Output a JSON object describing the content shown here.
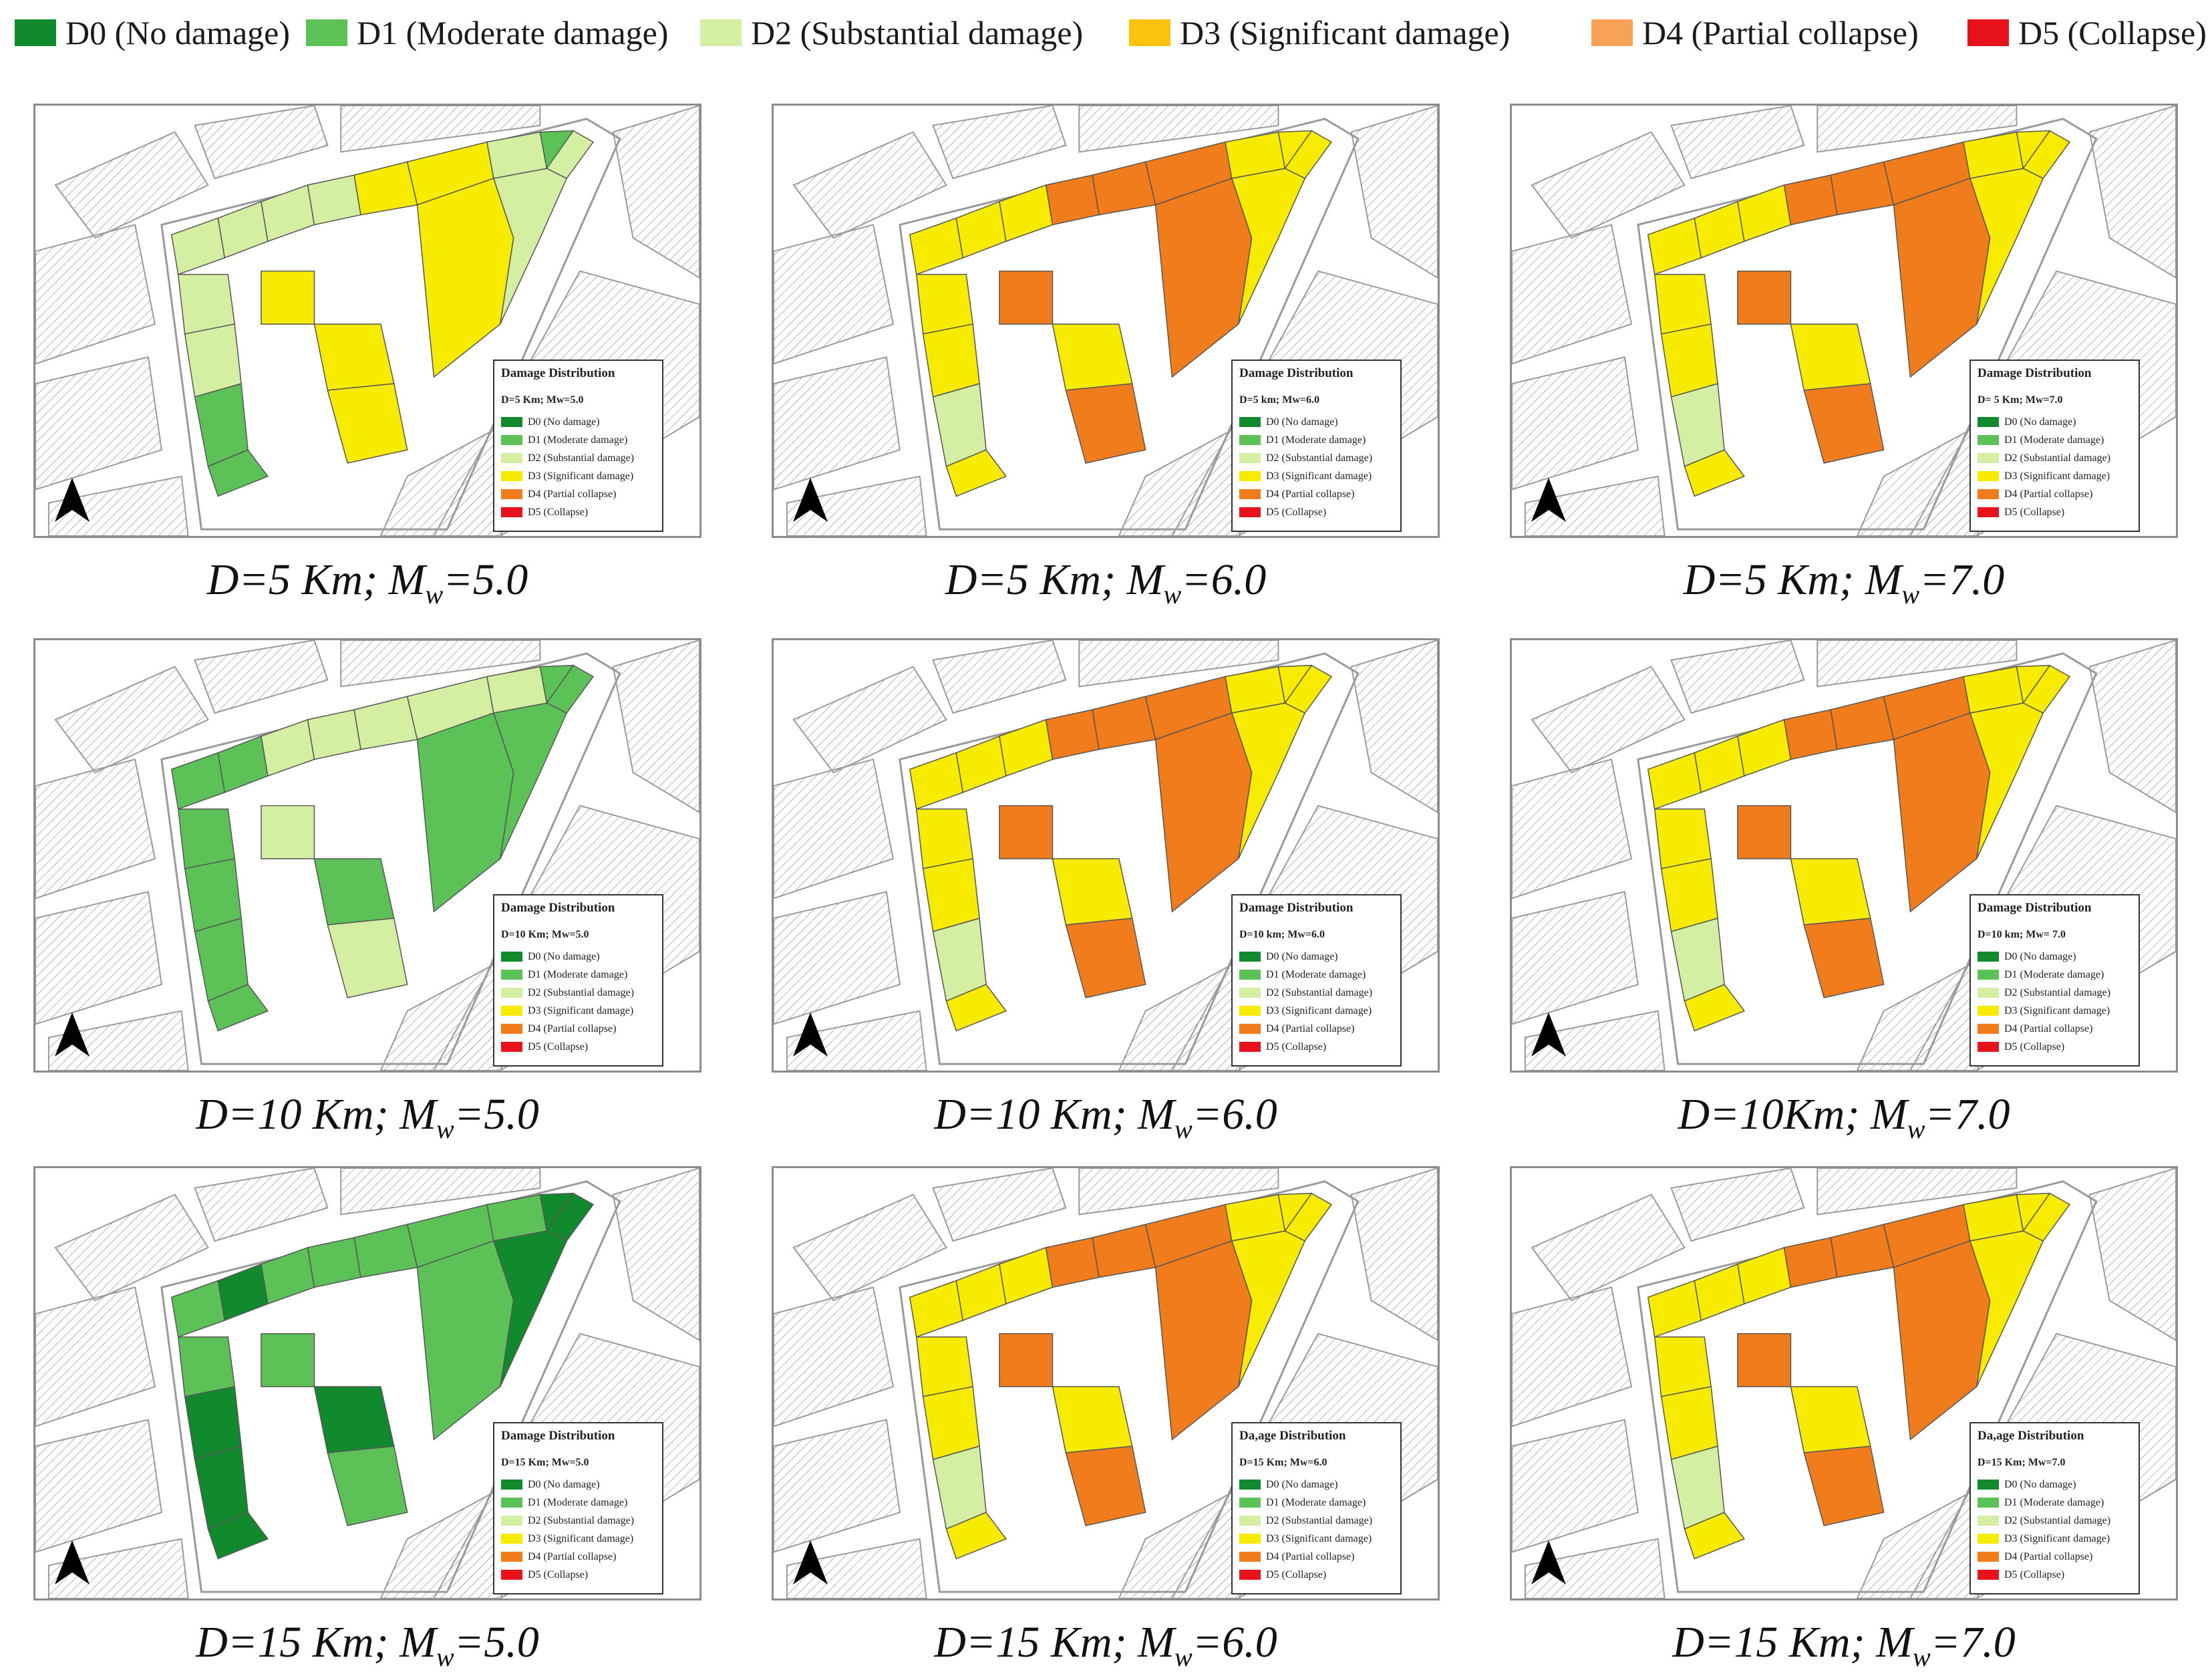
{
  "legend_items": [
    {
      "code": "D0",
      "label": "D0 (No damage)",
      "color": "#118a2e"
    },
    {
      "code": "D1",
      "label": "D1 (Moderate damage)",
      "color": "#5cc258"
    },
    {
      "code": "D2",
      "label": "D2 (Substantial damage)",
      "color": "#d4eea2"
    },
    {
      "code": "D3",
      "label": "D3 (Significant damage)",
      "color": "#f7ec00"
    },
    {
      "code": "D4",
      "label": "D4 (Partial collapse)",
      "color": "#f07c1c"
    },
    {
      "code": "D5",
      "label": "D5 (Collapse)",
      "color": "#e8121c"
    }
  ],
  "top_legend": [
    {
      "code": "D0",
      "label": "D0 (No damage)",
      "color": "#118a2e"
    },
    {
      "code": "D1",
      "label": "D1 (Moderate damage)",
      "color": "#5cc258"
    },
    {
      "code": "D2",
      "label": "D2 (Substantial damage)",
      "color": "#d4eea2"
    },
    {
      "code": "D3",
      "label": "D3 (Significant damage)",
      "color": "#fcc30e"
    },
    {
      "code": "D4",
      "label": "D4 (Partial collapse)",
      "color": "#f7a256"
    },
    {
      "code": "D5",
      "label": "D5 (Collapse)",
      "color": "#e8121c"
    }
  ],
  "panels": [
    {
      "caption_pre": "D=5 Km; M",
      "caption_sub": "w",
      "caption_post": "=5.0",
      "legend_title": "Damage Distribution",
      "legend_sub": "D=5 Km; Mw=5.0",
      "scheme": "a"
    },
    {
      "caption_pre": "D=5 Km; M",
      "caption_sub": "w",
      "caption_post": "=6.0",
      "legend_title": "Damage Distribution",
      "legend_sub": "D=5 km; Mw=6.0",
      "scheme": "c"
    },
    {
      "caption_pre": "D=5 Km; M",
      "caption_sub": "w",
      "caption_post": "=7.0",
      "legend_title": "Damage Distribution",
      "legend_sub": "D= 5 Km; Mw=7.0",
      "scheme": "c"
    },
    {
      "caption_pre": "D=10 Km; M",
      "caption_sub": "w",
      "caption_post": "=5.0",
      "legend_title": "Damage Distribution",
      "legend_sub": "D=10 Km; Mw=5.0",
      "scheme": "b"
    },
    {
      "caption_pre": "D=10 Km; M",
      "caption_sub": "w",
      "caption_post": "=6.0",
      "legend_title": "Damage Distribution",
      "legend_sub": "D=10 km; Mw=6.0",
      "scheme": "c"
    },
    {
      "caption_pre": "D=10Km; M",
      "caption_sub": "w",
      "caption_post": "=7.0",
      "legend_title": "Damage Distribution",
      "legend_sub": "D=10 km; Mw= 7.0",
      "scheme": "c"
    },
    {
      "caption_pre": "D=15 Km; M",
      "caption_sub": "w",
      "caption_post": "=5.0",
      "legend_title": "Damage Distribution",
      "legend_sub": "D=15 Km; Mw=5.0",
      "scheme": "d"
    },
    {
      "caption_pre": "D=15 Km; M",
      "caption_sub": "w",
      "caption_post": "=6.0",
      "legend_title": "Da,age Distribution",
      "legend_sub": "D=15 Km; Mw=6.0",
      "scheme": "c"
    },
    {
      "caption_pre": "D=15 Km; M",
      "caption_sub": "w",
      "caption_post": "=7.0",
      "legend_title": "Da,age Distribution",
      "legend_sub": "D=15 Km; Mw=7.0",
      "scheme": "c"
    }
  ]
}
